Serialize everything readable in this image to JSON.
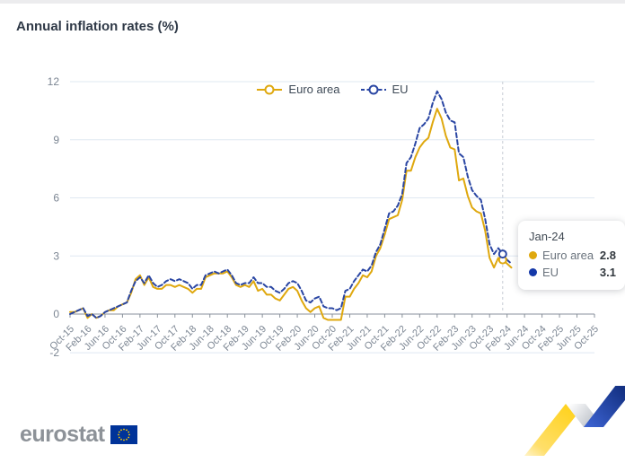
{
  "header": {
    "title": "Annual inflation rates (%)"
  },
  "legend": {
    "items": [
      {
        "label": "Euro area",
        "color": "#DFA80E",
        "style": "solid"
      },
      {
        "label": "EU",
        "color": "#2A46A3",
        "style": "dashed"
      }
    ]
  },
  "tooltip": {
    "title": "Jan-24",
    "rows": [
      {
        "label": "Euro area",
        "value": "2.8",
        "color": "#DFA80E"
      },
      {
        "label": "EU",
        "value": "3.1",
        "color": "#1438A8"
      }
    ]
  },
  "footer": {
    "logo_text": "eurostat",
    "flag_color": "#003399",
    "star_color": "#FFCC00"
  },
  "chart_data": {
    "type": "line",
    "title": "Annual inflation rates (%)",
    "xlabel": "",
    "ylabel": "",
    "ylim": [
      -2,
      12
    ],
    "grid": "horizontal",
    "legend_position": "top-center",
    "start_month": "Oct-15",
    "frequency": "monthly",
    "y_ticks": [
      12,
      9,
      6,
      3,
      0,
      -2
    ],
    "gridlines": [
      12,
      9,
      6,
      3,
      -2
    ],
    "x_tick_labels": [
      "Oct-15",
      "Feb-16",
      "Jun-16",
      "Oct-16",
      "Feb-17",
      "Jun-17",
      "Oct-17",
      "Feb-18",
      "Jun-18",
      "Oct-18",
      "Feb-19",
      "Jun-19",
      "Oct-19",
      "Feb-20",
      "Jun-20",
      "Oct-20",
      "Feb-21",
      "Jun-21",
      "Oct-21",
      "Feb-22",
      "Jun-22",
      "Oct-22",
      "Feb-23",
      "Jun-23",
      "Oct-23",
      "Feb-24",
      "Jun-24",
      "Oct-24",
      "Feb-25",
      "Jun-25",
      "Oct-25"
    ],
    "colors": {
      "grid": "#dfe8f2",
      "axis": "#8a929c",
      "hover_line": "#c6cbd2"
    },
    "hover": {
      "label": "Jan-24",
      "month_index": 99,
      "euro_area": 2.8,
      "eu": 3.1
    },
    "series": [
      {
        "name": "Euro area",
        "color": "#DFA80E",
        "dash": null,
        "values": [
          0.1,
          0.1,
          0.2,
          0.3,
          -0.2,
          0.0,
          -0.2,
          -0.1,
          0.1,
          0.2,
          0.2,
          0.4,
          0.5,
          0.6,
          1.1,
          1.8,
          2.0,
          1.5,
          1.9,
          1.4,
          1.3,
          1.3,
          1.5,
          1.5,
          1.4,
          1.5,
          1.4,
          1.3,
          1.1,
          1.3,
          1.3,
          1.9,
          2.0,
          2.1,
          2.1,
          2.1,
          2.2,
          1.9,
          1.5,
          1.4,
          1.5,
          1.4,
          1.7,
          1.2,
          1.3,
          1.0,
          1.0,
          0.8,
          0.7,
          1.0,
          1.3,
          1.4,
          1.2,
          0.7,
          0.3,
          0.1,
          0.3,
          0.4,
          -0.2,
          -0.3,
          -0.3,
          -0.3,
          -0.3,
          0.9,
          0.9,
          1.3,
          1.6,
          2.0,
          1.9,
          2.2,
          3.0,
          3.4,
          4.1,
          4.9,
          5.0,
          5.1,
          5.9,
          7.4,
          7.4,
          8.1,
          8.6,
          8.9,
          9.1,
          9.9,
          10.6,
          10.1,
          9.2,
          8.6,
          8.5,
          6.9,
          7.0,
          6.1,
          5.5,
          5.3,
          5.2,
          4.3,
          2.9,
          2.4,
          2.9,
          2.8,
          2.6,
          2.4
        ]
      },
      {
        "name": "EU",
        "color": "#2A46A3",
        "dash": "5,3",
        "values": [
          0.0,
          0.1,
          0.2,
          0.3,
          -0.1,
          0.0,
          -0.2,
          -0.1,
          0.1,
          0.2,
          0.3,
          0.4,
          0.5,
          0.6,
          1.2,
          1.7,
          1.9,
          1.6,
          2.0,
          1.6,
          1.4,
          1.5,
          1.7,
          1.8,
          1.7,
          1.8,
          1.7,
          1.6,
          1.3,
          1.5,
          1.5,
          2.0,
          2.1,
          2.2,
          2.1,
          2.2,
          2.3,
          2.0,
          1.6,
          1.5,
          1.6,
          1.6,
          1.9,
          1.6,
          1.6,
          1.4,
          1.4,
          1.2,
          1.1,
          1.3,
          1.6,
          1.7,
          1.6,
          1.2,
          0.7,
          0.6,
          0.8,
          0.9,
          0.4,
          0.3,
          0.3,
          0.2,
          0.3,
          1.2,
          1.3,
          1.7,
          2.0,
          2.3,
          2.2,
          2.5,
          3.2,
          3.6,
          4.4,
          5.2,
          5.3,
          5.6,
          6.2,
          7.8,
          8.1,
          8.8,
          9.6,
          9.8,
          10.1,
          10.9,
          11.5,
          11.1,
          10.4,
          10.0,
          9.9,
          8.3,
          8.1,
          7.1,
          6.4,
          6.1,
          5.9,
          4.9,
          3.6,
          3.1,
          3.4,
          3.1,
          2.8,
          2.6
        ]
      }
    ]
  }
}
